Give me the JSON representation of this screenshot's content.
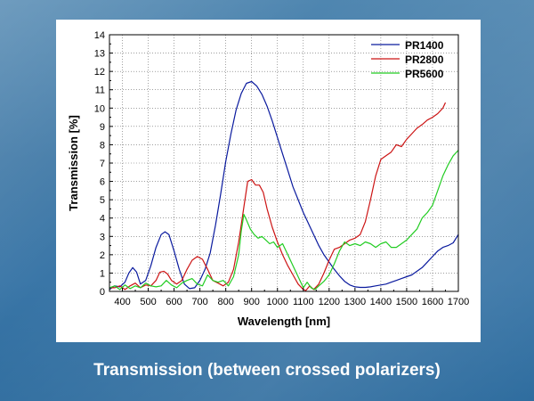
{
  "caption": "Transmission (between crossed polarizers)",
  "colors": {
    "PR1400": "#0a1a9e",
    "PR2800": "#cc1414",
    "PR5600": "#22cc22"
  },
  "chart_data": {
    "type": "line",
    "title": "",
    "xlabel": "Wavelength [nm]",
    "ylabel": "Transmission [%]",
    "xlim": [
      350,
      1700
    ],
    "ylim": [
      0,
      14
    ],
    "xticks": [
      400,
      500,
      600,
      700,
      800,
      900,
      1000,
      1100,
      1200,
      1300,
      1400,
      1500,
      1600,
      1700
    ],
    "yticks": [
      0,
      1,
      2,
      3,
      4,
      5,
      6,
      7,
      8,
      9,
      10,
      11,
      12,
      13,
      14
    ],
    "grid": true,
    "legend_position": "top-right",
    "series": [
      {
        "name": "PR1400",
        "x": [
          350,
          370,
          390,
          410,
          425,
          440,
          455,
          470,
          490,
          510,
          530,
          550,
          565,
          580,
          600,
          620,
          640,
          660,
          680,
          700,
          720,
          740,
          760,
          780,
          800,
          820,
          840,
          860,
          880,
          900,
          920,
          940,
          960,
          980,
          1000,
          1020,
          1040,
          1060,
          1080,
          1100,
          1120,
          1140,
          1160,
          1180,
          1200,
          1220,
          1240,
          1260,
          1280,
          1300,
          1320,
          1340,
          1360,
          1380,
          1400,
          1420,
          1440,
          1460,
          1480,
          1500,
          1520,
          1540,
          1560,
          1580,
          1600,
          1620,
          1640,
          1660,
          1680,
          1700
        ],
        "y": [
          0.1,
          0.3,
          0.25,
          0.5,
          1.0,
          1.3,
          1.05,
          0.4,
          0.6,
          1.4,
          2.4,
          3.1,
          3.25,
          3.1,
          2.2,
          1.2,
          0.4,
          0.15,
          0.2,
          0.6,
          1.2,
          2.1,
          3.6,
          5.3,
          7.1,
          8.6,
          9.9,
          10.8,
          11.35,
          11.45,
          11.2,
          10.75,
          10.1,
          9.3,
          8.4,
          7.5,
          6.6,
          5.7,
          5.0,
          4.3,
          3.7,
          3.1,
          2.5,
          2.0,
          1.6,
          1.2,
          0.85,
          0.55,
          0.35,
          0.25,
          0.22,
          0.22,
          0.25,
          0.3,
          0.35,
          0.4,
          0.5,
          0.6,
          0.7,
          0.8,
          0.9,
          1.1,
          1.3,
          1.6,
          1.9,
          2.2,
          2.4,
          2.5,
          2.65,
          3.1
        ]
      },
      {
        "name": "PR2800",
        "x": [
          350,
          370,
          390,
          410,
          430,
          450,
          470,
          490,
          510,
          530,
          545,
          560,
          575,
          590,
          610,
          630,
          650,
          670,
          690,
          710,
          730,
          750,
          770,
          790,
          810,
          830,
          850,
          870,
          885,
          900,
          915,
          930,
          945,
          960,
          980,
          1000,
          1020,
          1040,
          1060,
          1080,
          1100,
          1110,
          1125,
          1140,
          1160,
          1180,
          1200,
          1220,
          1240,
          1260,
          1280,
          1300,
          1320,
          1340,
          1360,
          1380,
          1400,
          1420,
          1440,
          1460,
          1480,
          1500,
          1520,
          1540,
          1560,
          1580,
          1600,
          1620,
          1640,
          1650
        ],
        "y": [
          0.2,
          0.2,
          0.3,
          0.1,
          0.3,
          0.45,
          0.2,
          0.35,
          0.3,
          0.6,
          1.05,
          1.1,
          0.95,
          0.6,
          0.4,
          0.6,
          1.2,
          1.7,
          1.9,
          1.75,
          1.2,
          0.6,
          0.45,
          0.3,
          0.5,
          1.2,
          2.7,
          4.6,
          6.0,
          6.1,
          5.8,
          5.8,
          5.4,
          4.5,
          3.5,
          2.7,
          2.0,
          1.4,
          0.9,
          0.4,
          0.1,
          0.05,
          0.3,
          0.1,
          0.4,
          1.0,
          1.7,
          2.3,
          2.4,
          2.6,
          2.8,
          2.9,
          3.1,
          3.8,
          5.0,
          6.3,
          7.2,
          7.4,
          7.6,
          8.0,
          7.9,
          8.3,
          8.6,
          8.9,
          9.1,
          9.35,
          9.5,
          9.7,
          10.0,
          10.3
        ]
      },
      {
        "name": "PR5600",
        "x": [
          350,
          370,
          390,
          410,
          430,
          450,
          470,
          490,
          510,
          530,
          550,
          570,
          590,
          610,
          630,
          650,
          670,
          690,
          710,
          730,
          750,
          770,
          790,
          810,
          830,
          850,
          860,
          870,
          880,
          895,
          910,
          925,
          940,
          955,
          970,
          985,
          1000,
          1020,
          1040,
          1060,
          1080,
          1100,
          1115,
          1130,
          1145,
          1160,
          1180,
          1200,
          1220,
          1240,
          1260,
          1280,
          1300,
          1320,
          1340,
          1360,
          1380,
          1400,
          1420,
          1440,
          1460,
          1480,
          1500,
          1520,
          1540,
          1560,
          1580,
          1600,
          1620,
          1640,
          1660,
          1680,
          1700
        ],
        "y": [
          0.2,
          0.3,
          0.1,
          0.35,
          0.15,
          0.3,
          0.2,
          0.45,
          0.3,
          0.25,
          0.3,
          0.6,
          0.35,
          0.2,
          0.45,
          0.6,
          0.7,
          0.4,
          0.3,
          0.9,
          0.6,
          0.5,
          0.6,
          0.3,
          0.8,
          2.0,
          3.3,
          4.2,
          3.9,
          3.4,
          3.1,
          2.9,
          3.0,
          2.8,
          2.6,
          2.7,
          2.4,
          2.6,
          2.0,
          1.4,
          0.8,
          0.2,
          0.5,
          0.2,
          0.1,
          0.3,
          0.55,
          0.9,
          1.5,
          2.2,
          2.7,
          2.5,
          2.6,
          2.5,
          2.7,
          2.6,
          2.4,
          2.6,
          2.7,
          2.4,
          2.4,
          2.6,
          2.8,
          3.1,
          3.4,
          4.0,
          4.3,
          4.7,
          5.5,
          6.3,
          6.9,
          7.4,
          7.7
        ]
      }
    ]
  }
}
